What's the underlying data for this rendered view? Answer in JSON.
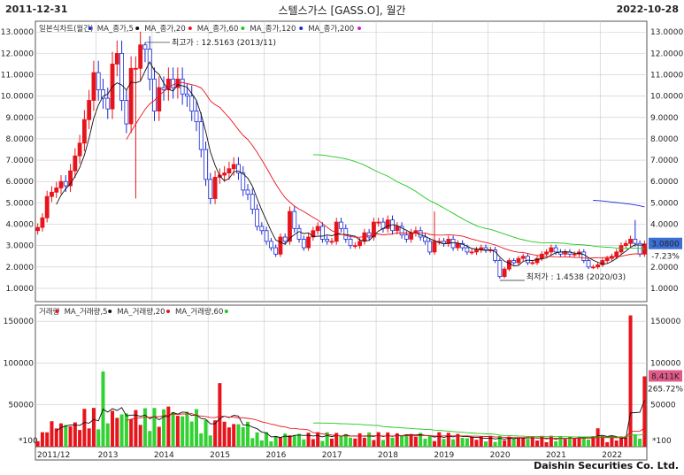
{
  "header": {
    "start_date": "2011-12-31",
    "end_date": "2022-10-28",
    "title": "스텔스가스 [GASS.O], 월간"
  },
  "footer": {
    "company": "Daishin Securities Co. Ltd."
  },
  "colors": {
    "up": "#e8141c",
    "down": "#1c2bd6",
    "ma5": "#111111",
    "ma20": "#e8141c",
    "ma60": "#1ec81e",
    "ma120": "#1c2bd6",
    "ma200": "#d020d0",
    "grid": "#c8c8c8",
    "vol_up": "#e8141c",
    "vol_down": "#32d232"
  },
  "price_panel": {
    "legend": [
      {
        "label": "일본식차트(월간)",
        "color": "#1c2bd6"
      },
      {
        "label": "MA_종가,5",
        "color": "#111111"
      },
      {
        "label": "MA_종가,20",
        "color": "#e8141c"
      },
      {
        "label": "MA_종가,60",
        "color": "#1ec81e"
      },
      {
        "label": "MA_종가,120",
        "color": "#1c2bd6"
      },
      {
        "label": "MA_종가,200",
        "color": "#d020d0"
      }
    ],
    "y_ticks": [
      "13.0000",
      "12.0000",
      "11.0000",
      "10.0000",
      "9.0000",
      "8.0000",
      "7.0000",
      "6.0000",
      "5.0000",
      "4.0000",
      "3.0000",
      "2.0000",
      "1.0000"
    ],
    "high_note": "최고가 : 12.5163 (2013/11)",
    "low_note": "최저가 : 1.4538 (2020/03)",
    "last_price": "3.0800",
    "last_change": "-7.23%"
  },
  "volume_panel": {
    "legend": [
      {
        "label": "거래량",
        "color": "#e8141c"
      },
      {
        "label": "MA_거래량,5",
        "color": "#111111"
      },
      {
        "label": "MA_거래량,20",
        "color": "#e8141c"
      },
      {
        "label": "MA_거래량,60",
        "color": "#1ec81e"
      }
    ],
    "y_ticks": [
      "150000",
      "100000",
      "50000"
    ],
    "unit_label": "*100",
    "last_volume": "8,411K",
    "last_volume_change": "265.72%"
  },
  "x_labels": [
    "2011/12",
    "2013",
    "2014",
    "2015",
    "2016",
    "2017",
    "2018",
    "2019",
    "2020",
    "2021",
    "2022"
  ],
  "chart_data": {
    "type": "candlestick",
    "title": "스텔스가스 [GASS.O], 월간",
    "ylim": [
      0.5,
      13.3
    ],
    "volume_ylim": [
      0,
      165000
    ],
    "x": [
      "2011/12",
      "2012/01",
      "2012/02",
      "2012/03",
      "2012/04",
      "2012/05",
      "2012/06",
      "2012/07",
      "2012/08",
      "2012/09",
      "2012/10",
      "2012/11",
      "2012/12",
      "2013/01",
      "2013/02",
      "2013/03",
      "2013/04",
      "2013/05",
      "2013/06",
      "2013/07",
      "2013/08",
      "2013/09",
      "2013/10",
      "2013/11",
      "2013/12",
      "2014/01",
      "2014/02",
      "2014/03",
      "2014/04",
      "2014/05",
      "2014/06",
      "2014/07",
      "2014/08",
      "2014/09",
      "2014/10",
      "2014/11",
      "2014/12",
      "2015/01",
      "2015/02",
      "2015/03",
      "2015/04",
      "2015/05",
      "2015/06",
      "2015/07",
      "2015/08",
      "2015/09",
      "2015/10",
      "2015/11",
      "2015/12",
      "2016/01",
      "2016/02",
      "2016/03",
      "2016/04",
      "2016/05",
      "2016/06",
      "2016/07",
      "2016/08",
      "2016/09",
      "2016/10",
      "2016/11",
      "2016/12",
      "2017/01",
      "2017/02",
      "2017/03",
      "2017/04",
      "2017/05",
      "2017/06",
      "2017/07",
      "2017/08",
      "2017/09",
      "2017/10",
      "2017/11",
      "2017/12",
      "2018/01",
      "2018/02",
      "2018/03",
      "2018/04",
      "2018/05",
      "2018/06",
      "2018/07",
      "2018/08",
      "2018/09",
      "2018/10",
      "2018/11",
      "2018/12",
      "2019/01",
      "2019/02",
      "2019/03",
      "2019/04",
      "2019/05",
      "2019/06",
      "2019/07",
      "2019/08",
      "2019/09",
      "2019/10",
      "2019/11",
      "2019/12",
      "2020/01",
      "2020/02",
      "2020/03",
      "2020/04",
      "2020/05",
      "2020/06",
      "2020/07",
      "2020/08",
      "2020/09",
      "2020/10",
      "2020/11",
      "2020/12",
      "2021/01",
      "2021/02",
      "2021/03",
      "2021/04",
      "2021/05",
      "2021/06",
      "2021/07",
      "2021/08",
      "2021/09",
      "2021/10",
      "2021/11",
      "2021/12",
      "2022/01",
      "2022/02",
      "2022/03",
      "2022/04",
      "2022/05",
      "2022/06",
      "2022/07",
      "2022/08",
      "2022/09",
      "2022/10"
    ],
    "close": [
      3.85,
      4.3,
      5.3,
      5.5,
      5.7,
      6.0,
      5.8,
      6.5,
      7.2,
      7.8,
      8.9,
      9.8,
      11.1,
      10.3,
      9.9,
      9.4,
      11.5,
      12.0,
      9.8,
      8.7,
      11.3,
      11.3,
      12.4,
      12.2,
      10.8,
      9.3,
      10.4,
      10.3,
      10.8,
      10.4,
      10.8,
      10.1,
      10.0,
      9.3,
      8.8,
      7.5,
      6.1,
      5.2,
      6.2,
      6.3,
      6.4,
      6.6,
      6.8,
      6.4,
      5.6,
      5.4,
      4.7,
      3.9,
      3.7,
      3.2,
      2.9,
      2.6,
      3.4,
      3.2,
      4.6,
      3.8,
      3.3,
      2.9,
      3.4,
      3.7,
      3.9,
      3.3,
      3.2,
      3.2,
      4.1,
      3.8,
      3.3,
      3.0,
      3.0,
      3.2,
      3.6,
      3.4,
      4.1,
      4.1,
      3.8,
      4.2,
      3.7,
      3.9,
      3.5,
      3.3,
      3.6,
      3.7,
      3.4,
      3.2,
      2.7,
      3.2,
      3.2,
      3.1,
      3.3,
      2.9,
      3.1,
      2.9,
      2.7,
      2.7,
      2.8,
      2.9,
      2.8,
      2.8,
      2.3,
      1.55,
      1.9,
      2.3,
      2.2,
      2.4,
      2.5,
      2.2,
      2.2,
      2.4,
      2.6,
      2.7,
      2.9,
      2.7,
      2.6,
      2.7,
      2.6,
      2.6,
      2.7,
      2.3,
      2.0,
      2.0,
      2.1,
      2.3,
      2.4,
      2.5,
      2.7,
      3.0,
      3.1,
      3.3,
      3.1,
      2.6,
      3.08
    ]
  }
}
